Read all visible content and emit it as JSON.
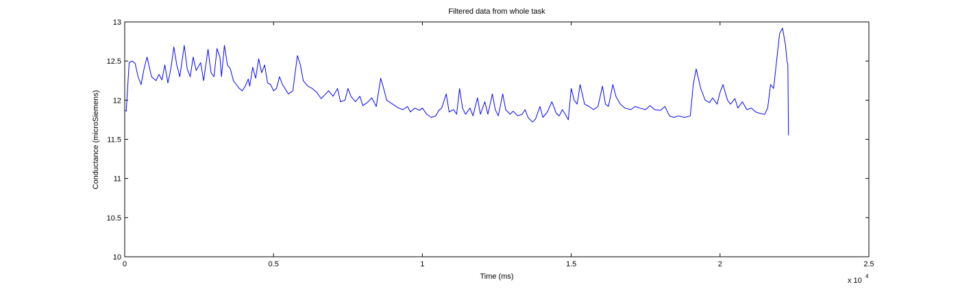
{
  "chart_data": {
    "type": "line",
    "title": "Filtered data from whole task",
    "xlabel": "Time (ms)",
    "ylabel": "Conductance (microSiemens)",
    "x_exponent_label": "x 10",
    "x_exponent_power": "4",
    "xlim": [
      0,
      2.5
    ],
    "ylim": [
      10,
      13
    ],
    "xticks": [
      {
        "value": 0,
        "label": "0"
      },
      {
        "value": 0.5,
        "label": "0.5"
      },
      {
        "value": 1,
        "label": "1"
      },
      {
        "value": 1.5,
        "label": "1.5"
      },
      {
        "value": 2,
        "label": "2"
      },
      {
        "value": 2.5,
        "label": "2.5"
      }
    ],
    "yticks": [
      {
        "value": 10,
        "label": "10"
      },
      {
        "value": 10.5,
        "label": "10.5"
      },
      {
        "value": 11,
        "label": "11"
      },
      {
        "value": 11.5,
        "label": "11.5"
      },
      {
        "value": 12,
        "label": "12"
      },
      {
        "value": 12.5,
        "label": "12.5"
      },
      {
        "value": 13,
        "label": "13"
      }
    ],
    "grid": false,
    "series": [
      {
        "color": "#0000ff",
        "points": [
          [
            0.0,
            11.87
          ],
          [
            0.005,
            11.86
          ],
          [
            0.015,
            12.48
          ],
          [
            0.025,
            12.5
          ],
          [
            0.035,
            12.47
          ],
          [
            0.045,
            12.3
          ],
          [
            0.055,
            12.2
          ],
          [
            0.065,
            12.4
          ],
          [
            0.075,
            12.55
          ],
          [
            0.09,
            12.3
          ],
          [
            0.105,
            12.25
          ],
          [
            0.115,
            12.33
          ],
          [
            0.125,
            12.26
          ],
          [
            0.135,
            12.45
          ],
          [
            0.145,
            12.22
          ],
          [
            0.155,
            12.4
          ],
          [
            0.165,
            12.68
          ],
          [
            0.175,
            12.45
          ],
          [
            0.185,
            12.3
          ],
          [
            0.2,
            12.7
          ],
          [
            0.21,
            12.4
          ],
          [
            0.22,
            12.3
          ],
          [
            0.23,
            12.55
          ],
          [
            0.24,
            12.38
          ],
          [
            0.255,
            12.48
          ],
          [
            0.265,
            12.25
          ],
          [
            0.28,
            12.65
          ],
          [
            0.29,
            12.35
          ],
          [
            0.3,
            12.3
          ],
          [
            0.31,
            12.66
          ],
          [
            0.32,
            12.55
          ],
          [
            0.325,
            12.3
          ],
          [
            0.335,
            12.7
          ],
          [
            0.345,
            12.45
          ],
          [
            0.355,
            12.4
          ],
          [
            0.365,
            12.25
          ],
          [
            0.375,
            12.2
          ],
          [
            0.385,
            12.15
          ],
          [
            0.395,
            12.12
          ],
          [
            0.405,
            12.18
          ],
          [
            0.415,
            12.27
          ],
          [
            0.42,
            12.18
          ],
          [
            0.43,
            12.42
          ],
          [
            0.44,
            12.28
          ],
          [
            0.45,
            12.53
          ],
          [
            0.46,
            12.35
          ],
          [
            0.47,
            12.45
          ],
          [
            0.48,
            12.22
          ],
          [
            0.49,
            12.2
          ],
          [
            0.5,
            12.12
          ],
          [
            0.51,
            12.15
          ],
          [
            0.52,
            12.3
          ],
          [
            0.53,
            12.2
          ],
          [
            0.55,
            12.08
          ],
          [
            0.565,
            12.12
          ],
          [
            0.58,
            12.57
          ],
          [
            0.59,
            12.45
          ],
          [
            0.6,
            12.25
          ],
          [
            0.615,
            12.18
          ],
          [
            0.63,
            12.15
          ],
          [
            0.645,
            12.1
          ],
          [
            0.66,
            12.02
          ],
          [
            0.675,
            12.08
          ],
          [
            0.685,
            12.12
          ],
          [
            0.7,
            12.05
          ],
          [
            0.715,
            12.15
          ],
          [
            0.725,
            11.98
          ],
          [
            0.74,
            12.0
          ],
          [
            0.75,
            12.15
          ],
          [
            0.76,
            12.05
          ],
          [
            0.775,
            11.98
          ],
          [
            0.79,
            12.05
          ],
          [
            0.8,
            11.93
          ],
          [
            0.815,
            11.97
          ],
          [
            0.83,
            12.03
          ],
          [
            0.845,
            11.92
          ],
          [
            0.86,
            12.28
          ],
          [
            0.87,
            12.15
          ],
          [
            0.88,
            12.0
          ],
          [
            0.9,
            11.95
          ],
          [
            0.92,
            11.9
          ],
          [
            0.935,
            11.88
          ],
          [
            0.95,
            11.92
          ],
          [
            0.96,
            11.85
          ],
          [
            0.975,
            11.9
          ],
          [
            0.99,
            11.87
          ],
          [
            1.0,
            11.9
          ],
          [
            1.015,
            11.82
          ],
          [
            1.03,
            11.78
          ],
          [
            1.045,
            11.8
          ],
          [
            1.055,
            11.87
          ],
          [
            1.065,
            11.9
          ],
          [
            1.08,
            12.08
          ],
          [
            1.09,
            11.85
          ],
          [
            1.105,
            11.88
          ],
          [
            1.115,
            11.82
          ],
          [
            1.125,
            12.15
          ],
          [
            1.135,
            11.9
          ],
          [
            1.145,
            11.82
          ],
          [
            1.16,
            11.9
          ],
          [
            1.17,
            11.8
          ],
          [
            1.185,
            12.03
          ],
          [
            1.195,
            11.82
          ],
          [
            1.21,
            11.98
          ],
          [
            1.22,
            11.82
          ],
          [
            1.235,
            12.08
          ],
          [
            1.245,
            11.88
          ],
          [
            1.255,
            11.8
          ],
          [
            1.27,
            12.08
          ],
          [
            1.28,
            11.88
          ],
          [
            1.295,
            11.82
          ],
          [
            1.305,
            11.86
          ],
          [
            1.32,
            11.8
          ],
          [
            1.335,
            11.82
          ],
          [
            1.345,
            11.88
          ],
          [
            1.355,
            11.78
          ],
          [
            1.37,
            11.72
          ],
          [
            1.38,
            11.76
          ],
          [
            1.395,
            11.92
          ],
          [
            1.405,
            11.78
          ],
          [
            1.42,
            11.85
          ],
          [
            1.435,
            11.98
          ],
          [
            1.45,
            11.83
          ],
          [
            1.46,
            11.8
          ],
          [
            1.47,
            11.88
          ],
          [
            1.48,
            11.82
          ],
          [
            1.49,
            11.75
          ],
          [
            1.5,
            12.15
          ],
          [
            1.51,
            12.0
          ],
          [
            1.52,
            11.95
          ],
          [
            1.53,
            12.2
          ],
          [
            1.545,
            11.95
          ],
          [
            1.56,
            11.92
          ],
          [
            1.575,
            11.88
          ],
          [
            1.59,
            11.92
          ],
          [
            1.605,
            12.18
          ],
          [
            1.615,
            11.95
          ],
          [
            1.625,
            11.92
          ],
          [
            1.64,
            12.2
          ],
          [
            1.65,
            12.05
          ],
          [
            1.665,
            11.95
          ],
          [
            1.68,
            11.9
          ],
          [
            1.7,
            11.88
          ],
          [
            1.715,
            11.92
          ],
          [
            1.73,
            11.9
          ],
          [
            1.75,
            11.88
          ],
          [
            1.765,
            11.93
          ],
          [
            1.78,
            11.88
          ],
          [
            1.8,
            11.87
          ],
          [
            1.815,
            11.92
          ],
          [
            1.83,
            11.8
          ],
          [
            1.845,
            11.78
          ],
          [
            1.86,
            11.8
          ],
          [
            1.88,
            11.78
          ],
          [
            1.9,
            11.8
          ],
          [
            1.91,
            12.2
          ],
          [
            1.92,
            12.4
          ],
          [
            1.935,
            12.15
          ],
          [
            1.95,
            12.0
          ],
          [
            1.965,
            11.97
          ],
          [
            1.975,
            12.03
          ],
          [
            1.99,
            11.95
          ],
          [
            2.0,
            12.1
          ],
          [
            2.01,
            12.2
          ],
          [
            2.025,
            12.0
          ],
          [
            2.035,
            11.95
          ],
          [
            2.05,
            12.02
          ],
          [
            2.06,
            11.9
          ],
          [
            2.075,
            11.98
          ],
          [
            2.09,
            11.88
          ],
          [
            2.105,
            11.9
          ],
          [
            2.12,
            11.85
          ],
          [
            2.135,
            11.83
          ],
          [
            2.15,
            11.82
          ],
          [
            2.16,
            11.9
          ],
          [
            2.17,
            12.2
          ],
          [
            2.18,
            12.15
          ],
          [
            2.19,
            12.5
          ],
          [
            2.2,
            12.85
          ],
          [
            2.21,
            12.92
          ],
          [
            2.22,
            12.7
          ],
          [
            2.225,
            12.5
          ],
          [
            2.228,
            12.45
          ],
          [
            2.23,
            11.55
          ]
        ]
      }
    ]
  }
}
